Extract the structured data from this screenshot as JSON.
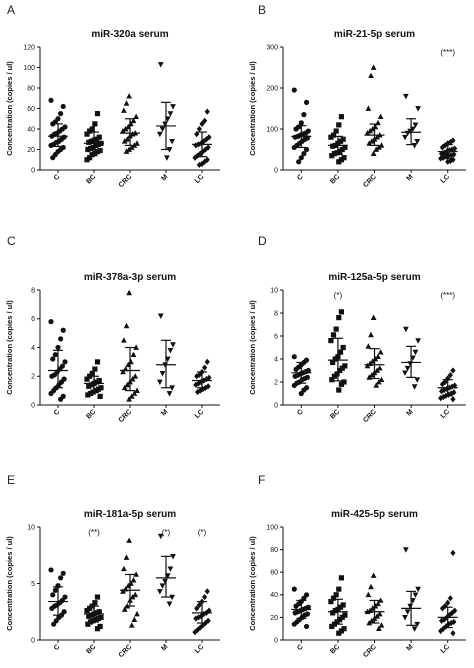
{
  "chart_data": [
    {
      "type": "scatter",
      "panel": "A",
      "title": "miR-320a serum",
      "ylabel": "Concentration (copies / ul)",
      "ylim": [
        0,
        120
      ],
      "yticks": [
        0,
        20,
        40,
        60,
        80,
        100,
        120
      ],
      "categories": [
        "C",
        "BC",
        "CRC",
        "M",
        "LC"
      ],
      "markers": [
        "circle",
        "square",
        "triangle",
        "triangle-down",
        "diamond"
      ],
      "significance": [
        "",
        "",
        "",
        "",
        ""
      ],
      "summary": [
        {
          "mean": 33,
          "sd_low": 23,
          "sd_high": 45
        },
        {
          "mean": 26,
          "sd_low": 16,
          "sd_high": 37
        },
        {
          "mean": 36,
          "sd_low": 24,
          "sd_high": 50
        },
        {
          "mean": 43,
          "sd_low": 20,
          "sd_high": 66
        },
        {
          "mean": 25,
          "sd_low": 13,
          "sd_high": 37
        }
      ],
      "points": [
        [
          68,
          62,
          55,
          50,
          47,
          45,
          42,
          40,
          38,
          36,
          35,
          33,
          32,
          30,
          28,
          27,
          25,
          24,
          22,
          20,
          18,
          15,
          12
        ],
        [
          55,
          45,
          40,
          38,
          35,
          32,
          30,
          29,
          28,
          27,
          26,
          25,
          24,
          22,
          21,
          20,
          19,
          18,
          16,
          15,
          12,
          10
        ],
        [
          72,
          65,
          58,
          52,
          48,
          45,
          42,
          40,
          38,
          36,
          35,
          33,
          30,
          28,
          26,
          24,
          22,
          20,
          18
        ],
        [
          103,
          62,
          55,
          50,
          45,
          40,
          35,
          28,
          20,
          12
        ],
        [
          57,
          48,
          45,
          40,
          35,
          32,
          30,
          28,
          26,
          25,
          24,
          22,
          20,
          18,
          16,
          14,
          12,
          10,
          8,
          6,
          5
        ]
      ]
    },
    {
      "type": "scatter",
      "panel": "B",
      "title": "miR-21-5p serum",
      "ylabel": "Concentration (copies / ul)",
      "ylim": [
        0,
        300
      ],
      "yticks": [
        0,
        100,
        200,
        300
      ],
      "categories": [
        "C",
        "BC",
        "CRC",
        "M",
        "LC"
      ],
      "markers": [
        "circle",
        "square",
        "triangle",
        "triangle-down",
        "diamond"
      ],
      "significance": [
        "",
        "",
        "",
        "",
        "(***)"
      ],
      "summary": [
        {
          "mean": 82,
          "sd_low": 55,
          "sd_high": 108
        },
        {
          "mean": 60,
          "sd_low": 38,
          "sd_high": 82
        },
        {
          "mean": 85,
          "sd_low": 60,
          "sd_high": 112
        },
        {
          "mean": 92,
          "sd_low": 62,
          "sd_high": 125
        },
        {
          "mean": 45,
          "sd_low": 28,
          "sd_high": 62
        }
      ],
      "points": [
        [
          195,
          165,
          135,
          115,
          105,
          100,
          95,
          90,
          88,
          85,
          82,
          80,
          78,
          75,
          70,
          65,
          60,
          55,
          50,
          40,
          30,
          20
        ],
        [
          130,
          110,
          95,
          85,
          80,
          75,
          70,
          65,
          60,
          58,
          55,
          50,
          45,
          42,
          40,
          35,
          30,
          25,
          20
        ],
        [
          250,
          230,
          150,
          130,
          115,
          105,
          100,
          95,
          90,
          85,
          80,
          75,
          70,
          65,
          60,
          55,
          50,
          40
        ],
        [
          180,
          150,
          110,
          100,
          95,
          90,
          80,
          70,
          60
        ],
        [
          72,
          68,
          65,
          60,
          55,
          52,
          50,
          48,
          45,
          42,
          40,
          38,
          36,
          35,
          33,
          30,
          28,
          25,
          22,
          20
        ]
      ]
    },
    {
      "type": "scatter",
      "panel": "C",
      "title": "miR-378a-3p serum",
      "ylabel": "Concentration (copies / ul)",
      "ylim": [
        0,
        8
      ],
      "yticks": [
        0,
        2,
        4,
        6,
        8
      ],
      "categories": [
        "C",
        "BC",
        "CRC",
        "M",
        "LC"
      ],
      "markers": [
        "circle",
        "square",
        "triangle",
        "triangle-down",
        "diamond"
      ],
      "significance": [
        "",
        "",
        "",
        "",
        ""
      ],
      "summary": [
        {
          "mean": 2.4,
          "sd_low": 1.2,
          "sd_high": 3.8
        },
        {
          "mean": 1.5,
          "sd_low": 0.9,
          "sd_high": 2.0
        },
        {
          "mean": 2.4,
          "sd_low": 1.0,
          "sd_high": 4.0
        },
        {
          "mean": 2.8,
          "sd_low": 1.2,
          "sd_high": 4.5
        },
        {
          "mean": 1.7,
          "sd_low": 1.2,
          "sd_high": 2.3
        }
      ],
      "points": [
        [
          5.8,
          5.2,
          4.6,
          4.0,
          3.5,
          3.2,
          3.0,
          2.7,
          2.5,
          2.3,
          2.1,
          2.0,
          1.8,
          1.6,
          1.4,
          1.2,
          1.0,
          0.8,
          0.6,
          0.4
        ],
        [
          3.0,
          2.5,
          2.2,
          2.0,
          1.8,
          1.7,
          1.6,
          1.5,
          1.4,
          1.3,
          1.2,
          1.1,
          1.0,
          0.9,
          0.8,
          0.7,
          0.6
        ],
        [
          7.8,
          5.5,
          4.5,
          4.0,
          3.5,
          3.0,
          2.8,
          2.5,
          2.3,
          2.0,
          1.8,
          1.6,
          1.4,
          1.2,
          1.0,
          0.8,
          0.6,
          0.4
        ],
        [
          6.2,
          4.2,
          3.8,
          3.2,
          2.8,
          2.2,
          1.6,
          1.2,
          0.8
        ],
        [
          3.0,
          2.6,
          2.3,
          2.1,
          2.0,
          1.9,
          1.8,
          1.7,
          1.6,
          1.5,
          1.4,
          1.3,
          1.2,
          1.1,
          1.0,
          0.9
        ]
      ]
    },
    {
      "type": "scatter",
      "panel": "D",
      "title": "miR-125a-5p serum",
      "ylabel": "Concentration (copies / ul)",
      "ylim": [
        0,
        10
      ],
      "yticks": [
        0,
        2,
        4,
        6,
        8,
        10
      ],
      "categories": [
        "C",
        "BC",
        "CRC",
        "M",
        "LC"
      ],
      "markers": [
        "circle",
        "square",
        "triangle",
        "triangle-down",
        "diamond"
      ],
      "significance": [
        "",
        "(*)",
        "",
        "",
        "(***)"
      ],
      "summary": [
        {
          "mean": 2.8,
          "sd_low": 1.9,
          "sd_high": 3.7
        },
        {
          "mean": 3.9,
          "sd_low": 2.1,
          "sd_high": 5.8
        },
        {
          "mean": 3.5,
          "sd_low": 2.3,
          "sd_high": 4.9
        },
        {
          "mean": 3.7,
          "sd_low": 2.4,
          "sd_high": 5.1
        },
        {
          "mean": 1.5,
          "sd_low": 0.8,
          "sd_high": 2.2
        }
      ],
      "points": [
        [
          4.2,
          3.9,
          3.7,
          3.5,
          3.3,
          3.1,
          3.0,
          2.9,
          2.8,
          2.7,
          2.6,
          2.5,
          2.4,
          2.3,
          2.2,
          2.0,
          1.9,
          1.7,
          1.5,
          1.3,
          1.0
        ],
        [
          8.1,
          7.6,
          6.6,
          6.1,
          5.6,
          5.0,
          4.6,
          4.2,
          4.0,
          3.7,
          3.4,
          3.2,
          3.0,
          2.7,
          2.5,
          2.2,
          2.0,
          1.8,
          1.3
        ],
        [
          7.6,
          6.1,
          5.1,
          4.6,
          4.2,
          4.0,
          3.8,
          3.6,
          3.4,
          3.2,
          3.0,
          2.8,
          2.6,
          2.4,
          2.2,
          2.0,
          1.7
        ],
        [
          6.6,
          5.6,
          4.6,
          4.1,
          3.6,
          3.2,
          2.8,
          2.2,
          1.6
        ],
        [
          3.0,
          2.6,
          2.3,
          2.0,
          1.8,
          1.7,
          1.6,
          1.5,
          1.4,
          1.3,
          1.2,
          1.1,
          1.0,
          0.9,
          0.8,
          0.7,
          0.6,
          0.5
        ]
      ]
    },
    {
      "type": "scatter",
      "panel": "E",
      "title": "miR-181a-5p serum",
      "ylabel": "Concentration (copies / ul)",
      "ylim": [
        0,
        10
      ],
      "yticks": [
        0,
        5,
        10
      ],
      "categories": [
        "C",
        "BC",
        "CRC",
        "M",
        "LC"
      ],
      "markers": [
        "circle",
        "square",
        "triangle",
        "triangle-down",
        "diamond"
      ],
      "significance": [
        "",
        "(**)",
        "",
        "(*)",
        "(*)"
      ],
      "summary": [
        {
          "mean": 3.4,
          "sd_low": 2.2,
          "sd_high": 4.7
        },
        {
          "mean": 2.3,
          "sd_low": 1.6,
          "sd_high": 3.0
        },
        {
          "mean": 4.4,
          "sd_low": 3.0,
          "sd_high": 5.8
        },
        {
          "mean": 5.5,
          "sd_low": 3.8,
          "sd_high": 7.4
        },
        {
          "mean": 2.4,
          "sd_low": 1.5,
          "sd_high": 3.4
        }
      ],
      "points": [
        [
          6.2,
          5.9,
          5.5,
          4.8,
          4.4,
          4.0,
          3.8,
          3.5,
          3.3,
          3.1,
          3.0,
          2.8,
          2.5,
          2.2,
          2.0,
          1.7,
          1.4
        ],
        [
          3.8,
          3.3,
          3.0,
          2.8,
          2.6,
          2.5,
          2.4,
          2.3,
          2.2,
          2.1,
          2.0,
          1.9,
          1.8,
          1.7,
          1.6,
          1.4,
          1.2,
          1.0
        ],
        [
          8.8,
          7.3,
          6.3,
          5.8,
          5.3,
          5.0,
          4.8,
          4.5,
          4.3,
          4.0,
          3.8,
          3.5,
          3.0,
          2.7,
          2.3,
          1.8,
          1.3
        ],
        [
          9.2,
          7.4,
          6.3,
          5.7,
          5.2,
          4.8,
          4.3,
          3.8,
          3.2
        ],
        [
          4.3,
          3.8,
          3.4,
          3.1,
          2.8,
          2.6,
          2.4,
          2.3,
          2.1,
          2.0,
          1.9,
          1.7,
          1.5,
          1.3,
          1.1,
          0.9,
          0.7
        ]
      ]
    },
    {
      "type": "scatter",
      "panel": "F",
      "title": "miR-425-5p serum",
      "ylabel": "Concentration (copies / ul)",
      "ylim": [
        0,
        100
      ],
      "yticks": [
        0,
        20,
        40,
        60,
        80,
        100
      ],
      "categories": [
        "C",
        "BC",
        "CRC",
        "M",
        "LC"
      ],
      "markers": [
        "circle",
        "square",
        "triangle",
        "triangle-down",
        "diamond"
      ],
      "significance": [
        "",
        "",
        "",
        "",
        ""
      ],
      "summary": [
        {
          "mean": 27,
          "sd_low": 19,
          "sd_high": 35
        },
        {
          "mean": 25,
          "sd_low": 14,
          "sd_high": 36
        },
        {
          "mean": 25,
          "sd_low": 15,
          "sd_high": 35
        },
        {
          "mean": 28,
          "sd_low": 13,
          "sd_high": 43
        },
        {
          "mean": 20,
          "sd_low": 11,
          "sd_high": 29
        }
      ],
      "points": [
        [
          45,
          40,
          37,
          34,
          32,
          30,
          29,
          28,
          27,
          26,
          25,
          24,
          23,
          22,
          20,
          18,
          16,
          14,
          12
        ],
        [
          55,
          45,
          40,
          37,
          34,
          31,
          29,
          27,
          26,
          24,
          22,
          20,
          18,
          16,
          14,
          12,
          10,
          8,
          6
        ],
        [
          57,
          47,
          40,
          35,
          32,
          30,
          28,
          26,
          25,
          23,
          21,
          19,
          17,
          15,
          13,
          10
        ],
        [
          80,
          45,
          40,
          35,
          30,
          25,
          20,
          14,
          10
        ],
        [
          77,
          37,
          33,
          30,
          28,
          26,
          24,
          22,
          20,
          18,
          17,
          16,
          15,
          14,
          12,
          10,
          8,
          6
        ]
      ]
    }
  ]
}
